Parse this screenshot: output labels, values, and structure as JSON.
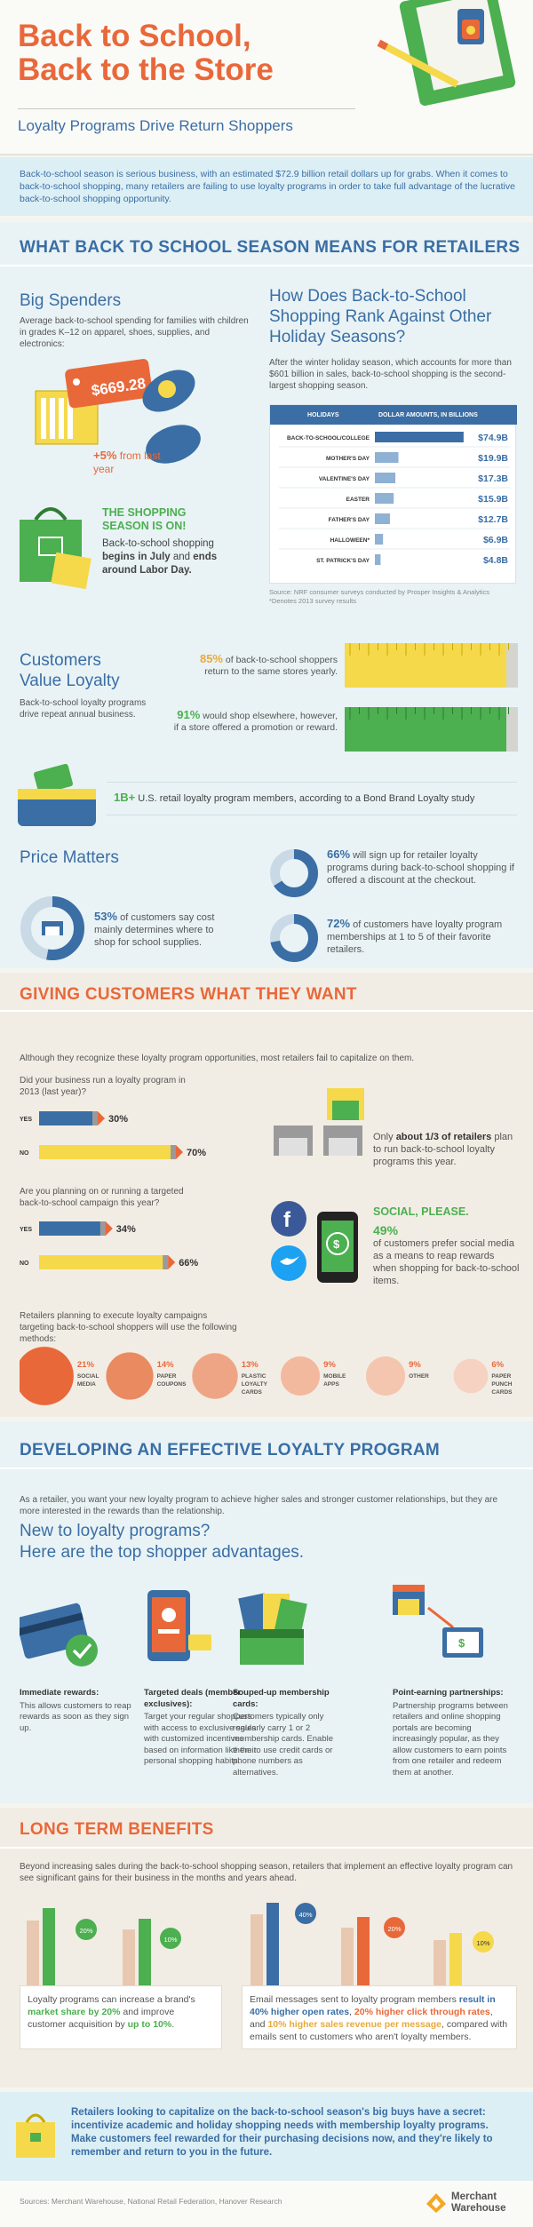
{
  "header": {
    "title_line1": "Back to School,",
    "title_line2": "Back to the Store",
    "subtitle": "Loyalty Programs Drive Return Shoppers"
  },
  "intro": {
    "text": "Back-to-school season is serious business, with an estimated $72.9 billion retail dollars up for grabs. When it comes to back-to-school shopping, many retailers are failing to use loyalty programs in order to take full advantage of the lucrative back-to-school shopping opportunity."
  },
  "section1": {
    "title": "WHAT BACK TO SCHOOL SEASON MEANS FOR RETAILERS",
    "big_spenders": {
      "heading": "Big Spenders",
      "text": "Average back-to-school spending for families with children in grades K–12 on apparel, shoes, supplies, and electronics:",
      "price_tag": "$669.28",
      "increase_value": "+5%",
      "increase_label": "from last year"
    },
    "shopping_season": {
      "heading_line1": "THE SHOPPING",
      "heading_line2": "SEASON IS ON!",
      "text_a": "Back-to-school shopping",
      "text_b": "begins in July",
      "text_c": "and",
      "text_d": "ends around Labor Day."
    },
    "rank": {
      "heading": "How Does Back-to-School Shopping Rank Against Other Holiday Seasons?",
      "text": "After the winter holiday season, which accounts for more than $601 billion in sales, back-to-school shopping is the second-largest shopping season.",
      "col_holidays": "HOLIDAYS",
      "col_amount": "DOLLAR AMOUNTS, IN BILLIONS",
      "source": "Source: NRF consumer surveys conducted by Prosper Insights & Analytics",
      "source2": "*Denotes 2013 survey results"
    },
    "loyalty": {
      "heading_line1": "Customers",
      "heading_line2": "Value Loyalty",
      "text": "Back-to-school loyalty programs drive repeat annual business.",
      "stat1_value": "85%",
      "stat1_text": "of back-to-school shoppers return to the same stores yearly.",
      "stat2_value": "91%",
      "stat2_text": "would shop elsewhere, however, if a store offered a promotion or reward.",
      "members_value": "1B+",
      "members_text": "U.S. retail loyalty program members, according to a Bond Brand Loyalty study"
    },
    "price": {
      "heading": "Price Matters",
      "stat1_value": "53%",
      "stat1_text": "of customers say cost mainly determines where to shop for school supplies.",
      "stat2_value": "66%",
      "stat2_text": "will sign up for retailer loyalty programs during back-to-school shopping if offered a discount at the checkout.",
      "stat3_value": "72%",
      "stat3_text": "of customers have loyalty program memberships at 1 to 5 of their favorite retailers."
    }
  },
  "section2": {
    "title": "GIVING CUSTOMERS WHAT THEY WANT",
    "intro": "Although they recognize these loyalty program opportunities, most retailers fail to capitalize on them.",
    "q1": "Did your business run a loyalty program in 2013 (last year)?",
    "q2": "Are you planning on or running a targeted back-to-school campaign this year?",
    "yes": "YES",
    "no": "NO",
    "third_a": "Only",
    "third_b": "about 1/3 of retailers",
    "third_c": "plan to run back-to-school loyalty programs this year.",
    "social_heading": "SOCIAL, PLEASE.",
    "social_value": "49%",
    "social_text": "of customers prefer social media as a means to reap rewards when shopping for back-to-school items.",
    "methods_intro": "Retailers planning to execute loyalty campaigns targeting back-to-school shoppers will use the following methods:"
  },
  "section3": {
    "title": "DEVELOPING AN EFFECTIVE LOYALTY PROGRAM",
    "intro": "As a retailer, you want your new loyalty program to achieve higher sales and stronger customer relationships, but they are more interested in the rewards than the relationship.",
    "heading_line1": "New to loyalty programs?",
    "heading_line2": "Here are the top shopper advantages.",
    "items": [
      {
        "title": "Immediate rewards:",
        "text": "This allows customers to reap rewards as soon as they sign up."
      },
      {
        "title": "Targeted deals (member exclusives):",
        "text": "Target your regular shoppers with access to exclusive sales with customized incentives based on information like their personal shopping habits."
      },
      {
        "title": "Souped-up membership cards:",
        "text": "Customers typically only regularly carry 1 or 2 membership cards. Enable them to use credit cards or phone numbers as alternatives."
      },
      {
        "title": "Point-earning partnerships:",
        "text": "Partnership programs between retailers and online shopping portals are becoming increasingly popular, as they allow customers to earn points from one retailer and redeem them at another."
      }
    ]
  },
  "section4": {
    "title": "LONG TERM BENEFITS",
    "intro": "Beyond increasing sales during the back-to-school shopping season, retailers that implement an effective loyalty program can see significant gains for their business in the months and years ahead.",
    "left_a": "Loyalty programs can increase a brand's",
    "left_b": "market share by 20%",
    "left_c": "and improve customer acquisition by",
    "left_d": "up to 10%",
    "left_e": ".",
    "right_a": "Email messages sent to loyalty program members",
    "right_b": "result in 40% higher open rates",
    "right_c": ",",
    "right_d": "20% higher click through rates",
    "right_e": ", and",
    "right_f": "10% higher sales revenue per message",
    "right_g": ", compared with emails sent to customers who aren't loyalty members.",
    "badge_left1": "20%",
    "badge_left2": "10%",
    "badge_right1": "40%",
    "badge_right2": "20%",
    "badge_right3": "10%"
  },
  "footer": {
    "callout": "Retailers looking to capitalize on the back-to-school season's big buys have a secret: incentivize academic and holiday shopping needs with membership loyalty programs. Make customers feel rewarded for their purchasing decisions now, and they're likely to remember and return to you in the future.",
    "sources": "Sources: Merchant Warehouse, National Retail Federation, Hanover Research",
    "logo_line1": "Merchant",
    "logo_line2": "Warehouse"
  },
  "colors": {
    "blue": "#3a6ea5",
    "orange": "#e9683a",
    "yellow": "#f5d94b",
    "green": "#4caf50",
    "light_blue_bg": "#dceff5",
    "beige_bg": "#f2ede4"
  },
  "chart_data": [
    {
      "type": "bar",
      "orientation": "horizontal",
      "categories": [
        "BACK-TO-SCHOOL/COLLEGE",
        "MOTHER'S DAY",
        "VALENTINE'S DAY",
        "EASTER",
        "FATHER'S DAY",
        "HALLOWEEN*",
        "ST. PATRICK'S DAY"
      ],
      "values": [
        74.9,
        19.9,
        17.3,
        15.9,
        12.7,
        6.9,
        4.8
      ],
      "labels": [
        "$74.9B",
        "$19.9B",
        "$17.3B",
        "$15.9B",
        "$12.7B",
        "$6.9B",
        "$4.8B"
      ]
    },
    {
      "type": "bar",
      "orientation": "horizontal",
      "categories": [
        "YES",
        "NO"
      ],
      "values": [
        30,
        70
      ],
      "labels": [
        "30%",
        "70%"
      ]
    },
    {
      "type": "bar",
      "orientation": "horizontal",
      "categories": [
        "YES",
        "NO"
      ],
      "values": [
        34,
        66
      ],
      "labels": [
        "34%",
        "66%"
      ]
    },
    {
      "type": "bubble",
      "categories": [
        "SOCIAL MEDIA",
        "PAPER COUPONS",
        "PLASTIC LOYALTY CARDS",
        "MOBILE APPS",
        "OTHER",
        "PAPER PUNCH CARDS"
      ],
      "values": [
        21,
        14,
        13,
        9,
        9,
        6
      ],
      "labels": [
        "21%",
        "14%",
        "13%",
        "9%",
        "9%",
        "6%"
      ]
    },
    {
      "type": "pie",
      "values": [
        53,
        66,
        72
      ],
      "labels": [
        "53%",
        "66%",
        "72%"
      ]
    }
  ]
}
